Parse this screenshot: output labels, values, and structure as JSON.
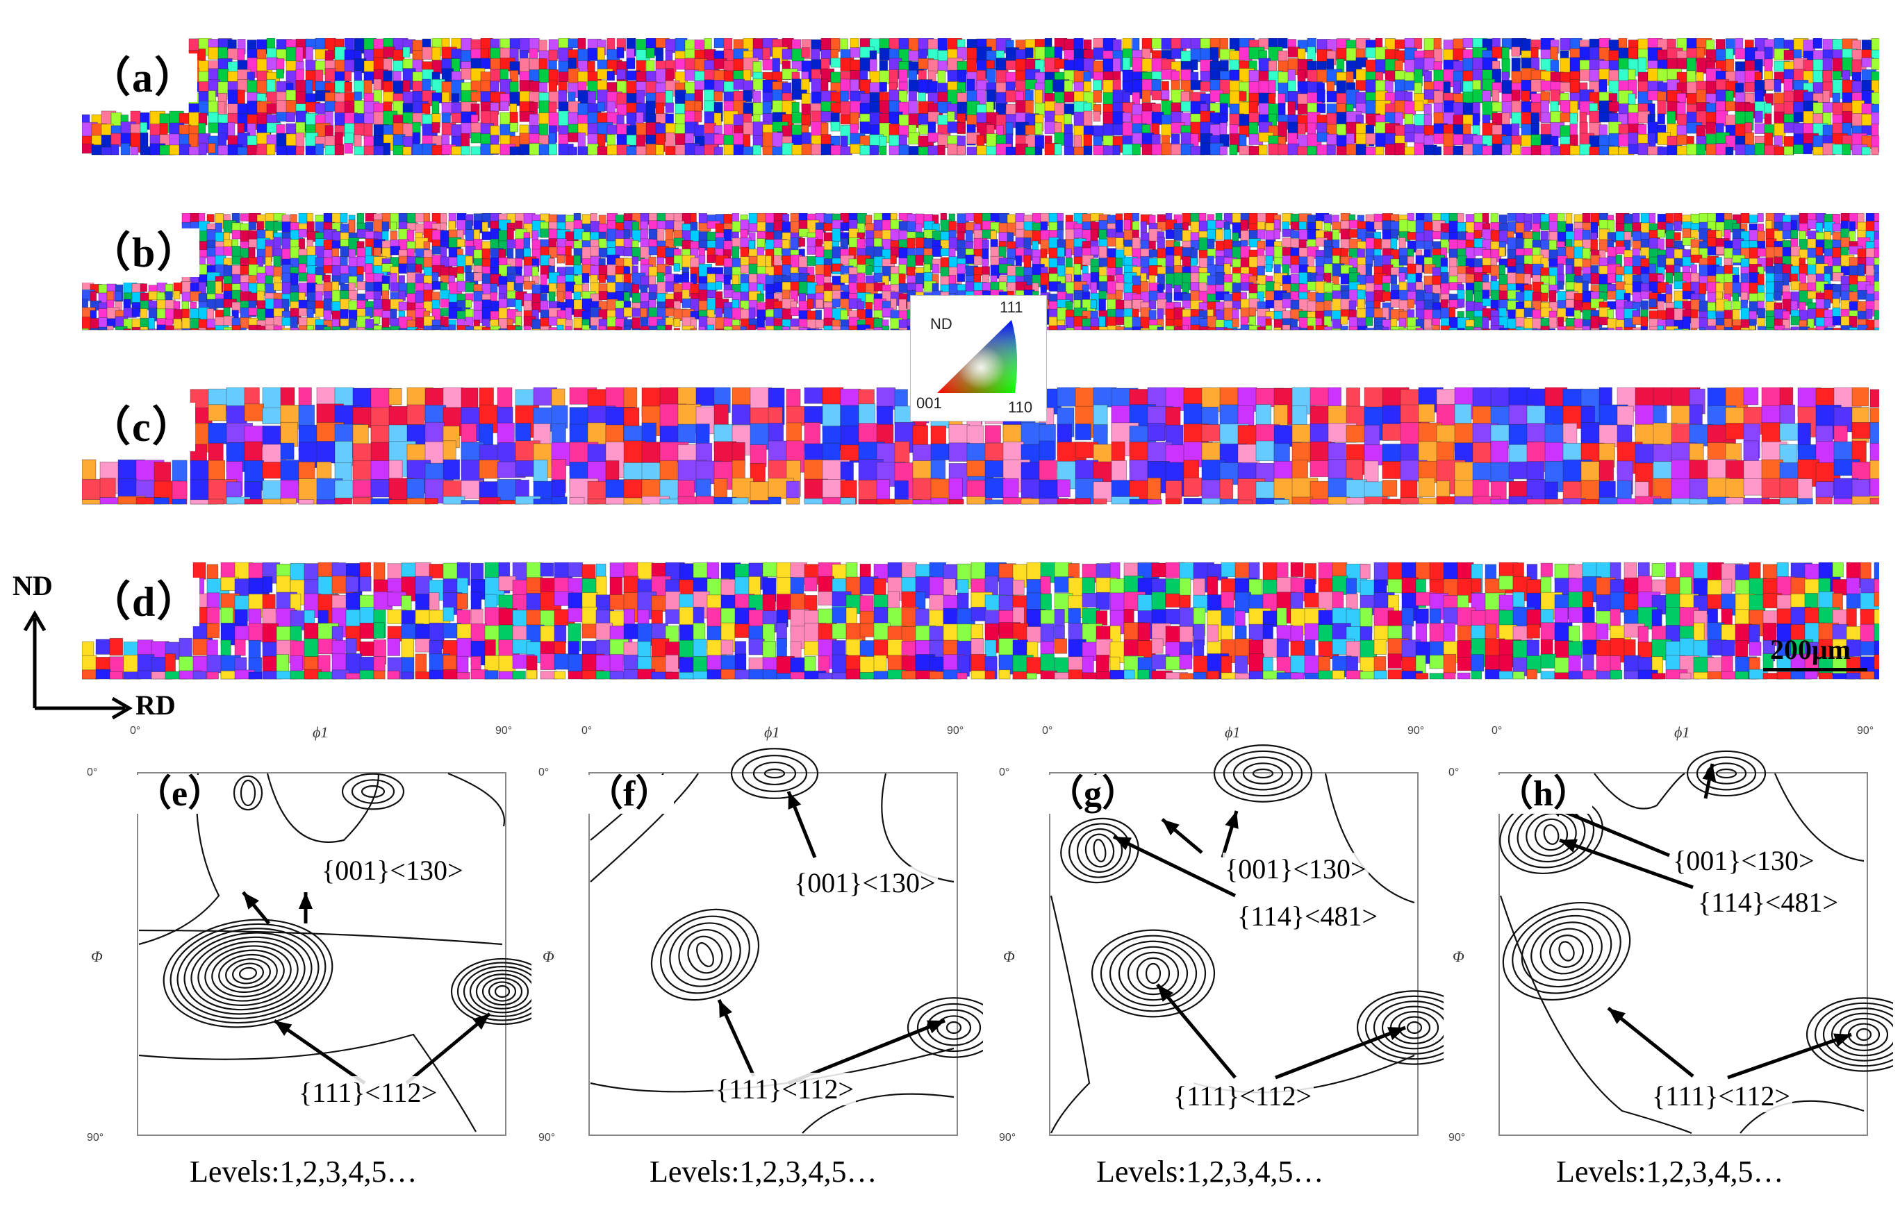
{
  "maps": [
    {
      "label": "（a）"
    },
    {
      "label": "（b）"
    },
    {
      "label": "（c）"
    },
    {
      "label": "（d）"
    }
  ],
  "ipf_key": {
    "direction": "ND",
    "corner_111": "111",
    "corner_001": "001",
    "corner_110": "110"
  },
  "axes": {
    "up": "ND",
    "right": "RD"
  },
  "scale_bar": "200μm",
  "odf": {
    "tick_0": "0°",
    "tick_90": "90°",
    "phi1": "ϕ1",
    "Phi": "Φ",
    "panels": [
      {
        "letter": "（e）",
        "levels": "Levels:1,2,3,4,5…",
        "labels": [
          "{001}<130>",
          "{111}<112>"
        ]
      },
      {
        "letter": "（f）",
        "levels": "Levels:1,2,3,4,5…",
        "labels": [
          "{001}<130>",
          "{111}<112>"
        ]
      },
      {
        "letter": "（g）",
        "levels": "Levels:1,2,3,4,5…",
        "labels": [
          "{001}<130>",
          "{114}<481>",
          "{111}<112>"
        ]
      },
      {
        "letter": "（h）",
        "levels": "Levels:1,2,3,4,5…",
        "labels": [
          "{001}<130>",
          "{114}<481>",
          "{111}<112>"
        ]
      }
    ]
  }
}
